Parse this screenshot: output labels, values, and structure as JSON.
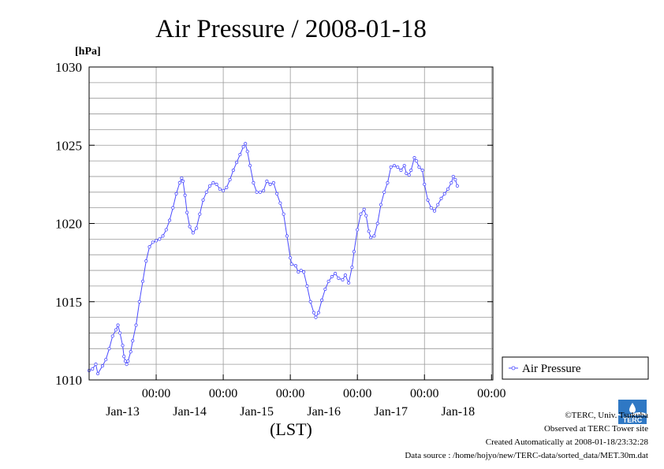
{
  "chart_data": {
    "type": "line",
    "title": "Air Pressure / 2008-01-18",
    "ylabel": "[hPa]",
    "xlabel": "(LST)",
    "ylim": [
      1010,
      1030
    ],
    "y_ticks": [
      1010,
      1015,
      1020,
      1025,
      1030
    ],
    "x_range_days": [
      0,
      6.02
    ],
    "x_tick_time_label": "00:00",
    "x_date_labels": [
      "Jan-13",
      "Jan-14",
      "Jan-15",
      "Jan-16",
      "Jan-17",
      "Jan-18"
    ],
    "legend": "Air Pressure",
    "grid": true,
    "series": [
      {
        "name": "Air Pressure",
        "color": "#4b4bff",
        "points": [
          [
            0.0,
            1010.6
          ],
          [
            0.05,
            1010.7
          ],
          [
            0.1,
            1011.0
          ],
          [
            0.13,
            1010.4
          ],
          [
            0.2,
            1010.9
          ],
          [
            0.25,
            1011.3
          ],
          [
            0.3,
            1012.0
          ],
          [
            0.35,
            1012.8
          ],
          [
            0.4,
            1013.2
          ],
          [
            0.43,
            1013.5
          ],
          [
            0.46,
            1013.0
          ],
          [
            0.5,
            1012.2
          ],
          [
            0.52,
            1011.5
          ],
          [
            0.54,
            1011.2
          ],
          [
            0.56,
            1011.0
          ],
          [
            0.58,
            1011.2
          ],
          [
            0.62,
            1011.8
          ],
          [
            0.65,
            1012.5
          ],
          [
            0.7,
            1013.5
          ],
          [
            0.75,
            1015.0
          ],
          [
            0.8,
            1016.3
          ],
          [
            0.85,
            1017.6
          ],
          [
            0.9,
            1018.5
          ],
          [
            0.95,
            1018.8
          ],
          [
            1.0,
            1018.9
          ],
          [
            1.05,
            1019.0
          ],
          [
            1.1,
            1019.2
          ],
          [
            1.15,
            1019.6
          ],
          [
            1.2,
            1020.2
          ],
          [
            1.25,
            1021.0
          ],
          [
            1.3,
            1021.9
          ],
          [
            1.35,
            1022.6
          ],
          [
            1.38,
            1022.9
          ],
          [
            1.4,
            1022.7
          ],
          [
            1.43,
            1021.8
          ],
          [
            1.46,
            1020.7
          ],
          [
            1.5,
            1019.8
          ],
          [
            1.55,
            1019.4
          ],
          [
            1.6,
            1019.7
          ],
          [
            1.65,
            1020.6
          ],
          [
            1.7,
            1021.5
          ],
          [
            1.75,
            1022.0
          ],
          [
            1.8,
            1022.4
          ],
          [
            1.85,
            1022.6
          ],
          [
            1.9,
            1022.5
          ],
          [
            1.95,
            1022.2
          ],
          [
            2.0,
            1022.1
          ],
          [
            2.05,
            1022.3
          ],
          [
            2.1,
            1022.8
          ],
          [
            2.15,
            1023.4
          ],
          [
            2.2,
            1023.9
          ],
          [
            2.25,
            1024.4
          ],
          [
            2.3,
            1024.9
          ],
          [
            2.33,
            1025.1
          ],
          [
            2.36,
            1024.6
          ],
          [
            2.4,
            1023.7
          ],
          [
            2.45,
            1022.6
          ],
          [
            2.5,
            1022.0
          ],
          [
            2.55,
            1022.0
          ],
          [
            2.6,
            1022.1
          ],
          [
            2.65,
            1022.7
          ],
          [
            2.7,
            1022.5
          ],
          [
            2.75,
            1022.6
          ],
          [
            2.8,
            1021.9
          ],
          [
            2.85,
            1021.3
          ],
          [
            2.9,
            1020.6
          ],
          [
            2.95,
            1019.2
          ],
          [
            3.0,
            1017.8
          ],
          [
            3.02,
            1017.4
          ],
          [
            3.08,
            1017.3
          ],
          [
            3.12,
            1016.9
          ],
          [
            3.16,
            1017.0
          ],
          [
            3.2,
            1016.9
          ],
          [
            3.25,
            1016.0
          ],
          [
            3.3,
            1015.0
          ],
          [
            3.35,
            1014.3
          ],
          [
            3.38,
            1014.0
          ],
          [
            3.42,
            1014.3
          ],
          [
            3.47,
            1015.1
          ],
          [
            3.52,
            1015.8
          ],
          [
            3.57,
            1016.3
          ],
          [
            3.62,
            1016.6
          ],
          [
            3.67,
            1016.8
          ],
          [
            3.72,
            1016.5
          ],
          [
            3.78,
            1016.4
          ],
          [
            3.82,
            1016.7
          ],
          [
            3.87,
            1016.2
          ],
          [
            3.92,
            1017.2
          ],
          [
            3.95,
            1018.2
          ],
          [
            4.0,
            1019.6
          ],
          [
            4.05,
            1020.6
          ],
          [
            4.1,
            1020.9
          ],
          [
            4.13,
            1020.5
          ],
          [
            4.17,
            1019.5
          ],
          [
            4.2,
            1019.1
          ],
          [
            4.25,
            1019.2
          ],
          [
            4.3,
            1020.0
          ],
          [
            4.35,
            1021.2
          ],
          [
            4.4,
            1022.0
          ],
          [
            4.45,
            1022.6
          ],
          [
            4.5,
            1023.6
          ],
          [
            4.55,
            1023.7
          ],
          [
            4.6,
            1023.6
          ],
          [
            4.65,
            1023.4
          ],
          [
            4.7,
            1023.7
          ],
          [
            4.73,
            1023.2
          ],
          [
            4.77,
            1023.1
          ],
          [
            4.8,
            1023.4
          ],
          [
            4.85,
            1024.2
          ],
          [
            4.88,
            1024.0
          ],
          [
            4.92,
            1023.6
          ],
          [
            4.97,
            1023.4
          ],
          [
            5.0,
            1022.5
          ],
          [
            5.05,
            1021.5
          ],
          [
            5.1,
            1021.0
          ],
          [
            5.15,
            1020.8
          ],
          [
            5.2,
            1021.2
          ],
          [
            5.25,
            1021.6
          ],
          [
            5.3,
            1021.9
          ],
          [
            5.35,
            1022.2
          ],
          [
            5.4,
            1022.6
          ],
          [
            5.43,
            1023.0
          ],
          [
            5.46,
            1022.8
          ],
          [
            5.49,
            1022.4
          ]
        ]
      }
    ]
  },
  "credits": {
    "copyright": "©TERC, Univ. Tsukuba",
    "observed": "Observed at TERC Tower site",
    "created": "Created Automatically at 2008-01-18/23:32:28",
    "source": "Data source : /home/hojyo/new/TERC-data/sorted_data/MET.30m.dat"
  },
  "logo": {
    "text": "TERC",
    "color": "#2f78c4"
  }
}
